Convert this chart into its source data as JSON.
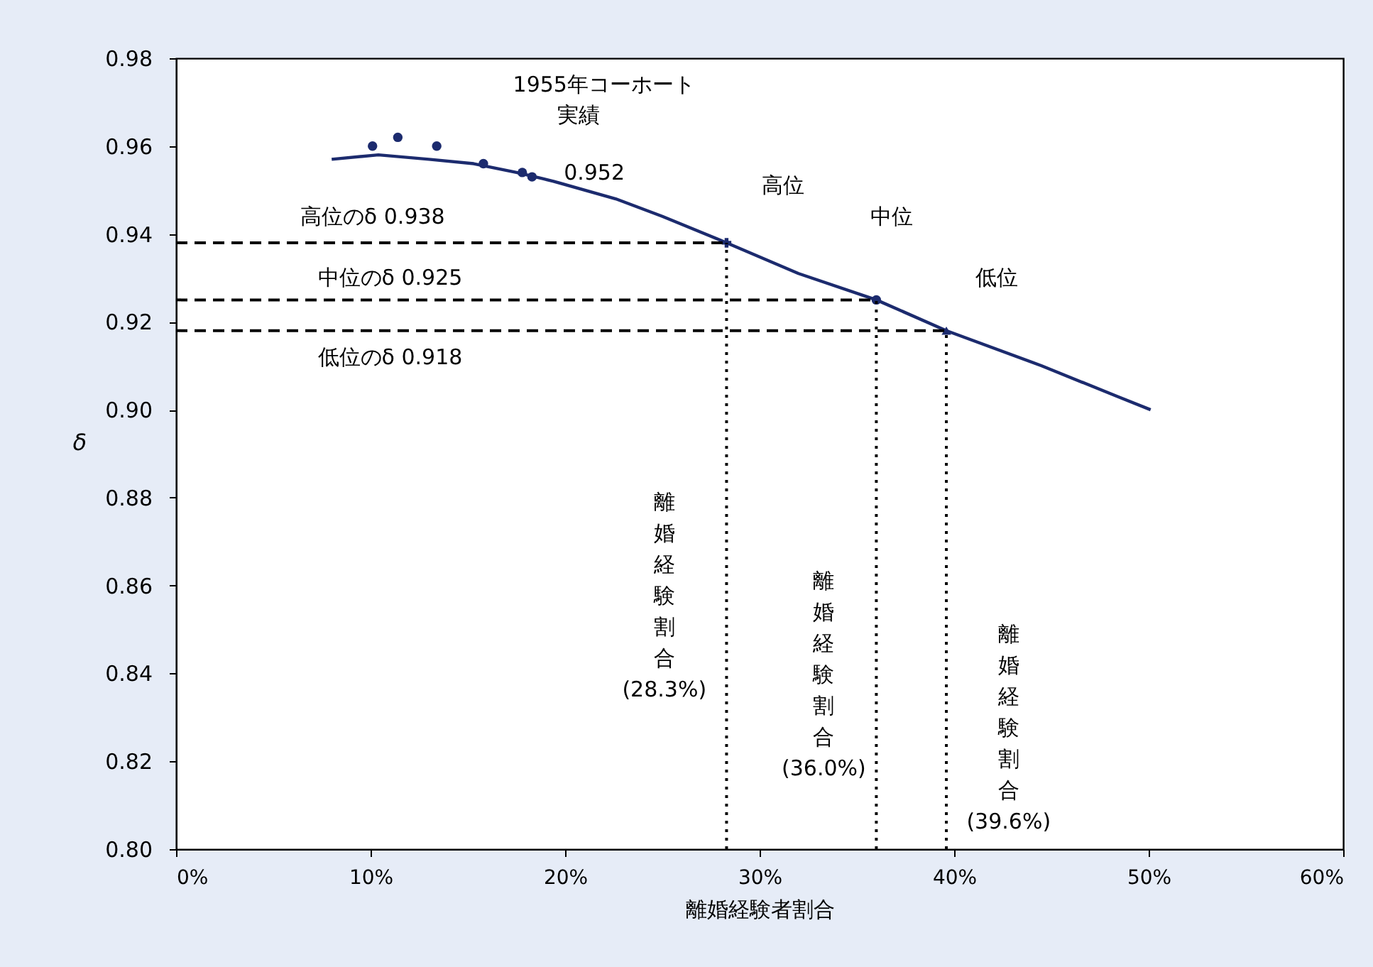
{
  "chart_data": {
    "type": "line",
    "xlabel": "離婚経験者割合",
    "ylabel": "δ",
    "xlim": [
      0,
      60
    ],
    "xticks": [
      {
        "value": 0,
        "label": "0%"
      },
      {
        "value": 10,
        "label": "10%"
      },
      {
        "value": 20,
        "label": "20%"
      },
      {
        "value": 30,
        "label": "30%"
      },
      {
        "value": 40,
        "label": "40%"
      },
      {
        "value": 50,
        "label": "50%"
      },
      {
        "value": 60,
        "label": "60%"
      }
    ],
    "ylim": [
      0.8,
      0.98
    ],
    "yticks": [
      {
        "value": 0.8,
        "label": "0.80"
      },
      0.82,
      0.84,
      0.86,
      0.88,
      {
        "value": 0.9,
        "label": "0.90"
      },
      0.92,
      0.94,
      0.96,
      0.98
    ],
    "grid": false,
    "series": [
      {
        "color": "#1c2b6e",
        "line_style": "solid",
        "x": [
          8.0,
          10.4,
          13.0,
          15.3,
          17.5,
          19.4,
          22.6,
          25.0,
          28.3,
          32.0,
          36.0,
          39.6,
          44.5,
          48.4,
          50.1
        ],
        "values": [
          0.957,
          0.958,
          0.957,
          0.956,
          0.954,
          0.952,
          0.948,
          0.944,
          0.938,
          0.931,
          0.925,
          0.918,
          0.91,
          0.903,
          0.9
        ]
      },
      {
        "type": "scatter",
        "color": "#1c2b6e",
        "marker": "circle",
        "x": [
          10.1,
          11.4,
          13.4,
          15.8,
          17.8,
          18.3
        ],
        "values": [
          0.96,
          0.962,
          0.96,
          0.956,
          0.954,
          0.953
        ]
      },
      {
        "type": "scatter",
        "color": "#1c2b6e",
        "marker": "cross",
        "x": [
          28.3
        ],
        "values": [
          0.938
        ]
      },
      {
        "type": "scatter",
        "color": "#1c2b6e",
        "marker": "circle",
        "x": [
          36.0
        ],
        "values": [
          0.925
        ]
      },
      {
        "type": "scatter",
        "color": "#1c2b6e",
        "marker": "triangle",
        "x": [
          39.6
        ],
        "values": [
          0.918
        ]
      },
      {
        "type": "line",
        "color": "#000000",
        "line_style": "dashed",
        "x": [
          0,
          28.3
        ],
        "values": [
          0.938,
          0.938
        ]
      },
      {
        "type": "line",
        "color": "#000000",
        "line_style": "dashed",
        "x": [
          0,
          36.0
        ],
        "values": [
          0.925,
          0.925
        ]
      },
      {
        "type": "line",
        "color": "#000000",
        "line_style": "dashed",
        "x": [
          0,
          39.6
        ],
        "values": [
          0.918,
          0.918
        ]
      },
      {
        "type": "line",
        "color": "#000000",
        "line_style": "dotted",
        "x": [
          28.3,
          28.3
        ],
        "values": [
          0.8,
          0.938
        ]
      },
      {
        "type": "line",
        "color": "#000000",
        "line_style": "dotted",
        "x": [
          36.0,
          36.0
        ],
        "values": [
          0.8,
          0.925
        ]
      },
      {
        "type": "line",
        "color": "#000000",
        "line_style": "dotted",
        "x": [
          39.6,
          39.6
        ],
        "values": [
          0.8,
          0.918
        ]
      }
    ],
    "annotations": [
      "1955年コーホート",
      "実績",
      "0.952",
      "高位のδ 0.938",
      "中位のδ 0.925",
      "低位のδ 0.918",
      "高位",
      "中位",
      "低位",
      "離婚経験割合(28.3%)",
      "離婚経験割合(36.0%)",
      "離婚経験割合(39.6%)"
    ]
  }
}
